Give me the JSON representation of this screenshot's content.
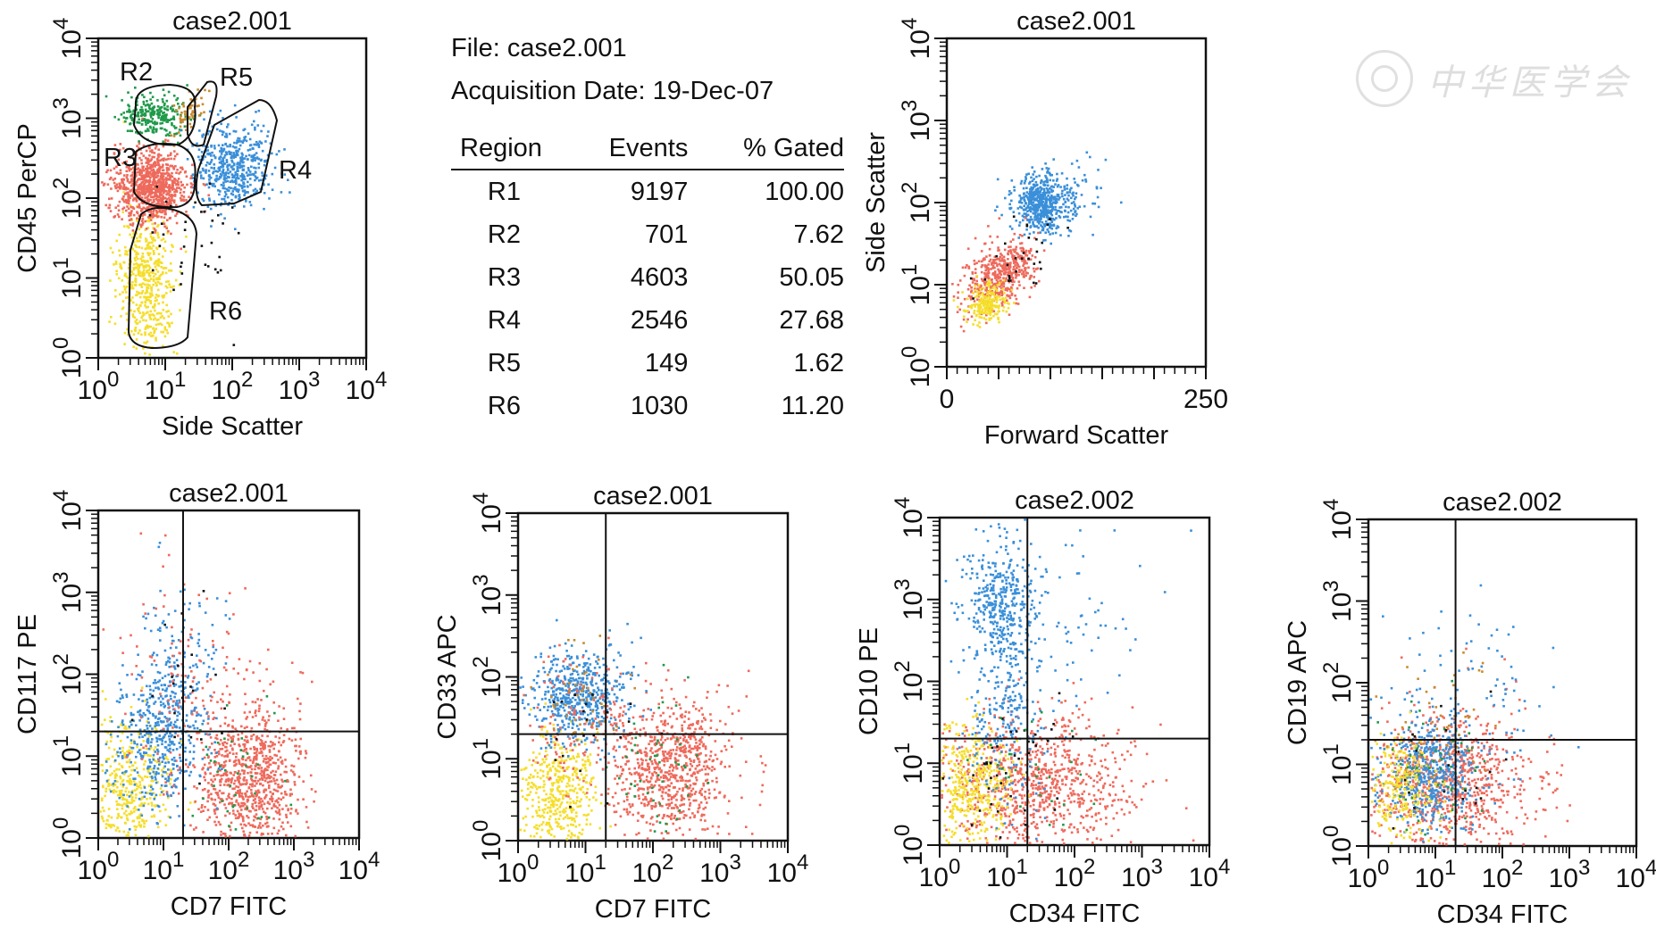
{
  "info": {
    "file_line": "File: case2.001",
    "date_line": "Acquisition Date: 19-Dec-07"
  },
  "stats": {
    "headers": [
      "Region",
      "Events",
      "% Gated"
    ],
    "rows": [
      [
        "R1",
        "9197",
        "100.00"
      ],
      [
        "R2",
        "701",
        "7.62"
      ],
      [
        "R3",
        "4603",
        "50.05"
      ],
      [
        "R4",
        "2546",
        "27.68"
      ],
      [
        "R5",
        "149",
        "1.62"
      ],
      [
        "R6",
        "1030",
        "11.20"
      ]
    ]
  },
  "watermark": {
    "text": "中华医学会"
  },
  "colors": {
    "blue": "#3a8fd9",
    "red": "#ee6a5c",
    "yellow": "#f5de2a",
    "green": "#1f9a4a",
    "orange": "#c98a2e",
    "black": "#111111"
  },
  "chart_data": [
    {
      "type": "scatter",
      "title": "case2.001",
      "xlabel": "Side Scatter",
      "ylabel": "CD45 PerCP",
      "xscale": "log",
      "yscale": "log",
      "xlim": [
        1,
        10000
      ],
      "ylim": [
        1,
        10000
      ],
      "regions": [
        {
          "name": "R2",
          "color": "#1f9a4a",
          "x_center": 6,
          "y_center": 1100,
          "n_events": 701
        },
        {
          "name": "R3",
          "color": "#ee6a5c",
          "x_center": 6,
          "y_center": 140,
          "n_events": 4603
        },
        {
          "name": "R4",
          "color": "#3a8fd9",
          "x_center": 100,
          "y_center": 250,
          "n_events": 2546
        },
        {
          "name": "R5",
          "color": "#c98a2e",
          "x_center": 20,
          "y_center": 1100,
          "n_events": 149
        },
        {
          "name": "R6",
          "color": "#f5de2a",
          "x_center": 5,
          "y_center": 10,
          "n_events": 1030
        }
      ]
    },
    {
      "type": "scatter",
      "title": "case2.001",
      "xlabel": "Forward Scatter",
      "ylabel": "Side Scatter",
      "xscale": "linear",
      "yscale": "log",
      "xlim": [
        0,
        250
      ],
      "ylim": [
        1,
        10000
      ],
      "x_ticks": [
        "0",
        "250"
      ],
      "populations": [
        {
          "name": "blue",
          "x_center": 90,
          "y_center": 100
        },
        {
          "name": "red",
          "x_center": 45,
          "y_center": 10
        },
        {
          "name": "yellow",
          "x_center": 35,
          "y_center": 6
        }
      ]
    },
    {
      "type": "scatter",
      "title": "case2.001",
      "xlabel": "CD7 FITC",
      "ylabel": "CD117 PE",
      "xscale": "log",
      "yscale": "log",
      "xlim": [
        1,
        10000
      ],
      "ylim": [
        1,
        10000
      ],
      "quadrant": {
        "x": 20,
        "y": 20
      }
    },
    {
      "type": "scatter",
      "title": "case2.001",
      "xlabel": "CD7 FITC",
      "ylabel": "CD33 APC",
      "xscale": "log",
      "yscale": "log",
      "xlim": [
        1,
        10000
      ],
      "ylim": [
        1,
        10000
      ],
      "quadrant": {
        "x": 20,
        "y": 20
      }
    },
    {
      "type": "scatter",
      "title": "case2.002",
      "xlabel": "CD34 FITC",
      "ylabel": "CD10 PE",
      "xscale": "log",
      "yscale": "log",
      "xlim": [
        1,
        10000
      ],
      "ylim": [
        1,
        10000
      ],
      "quadrant": {
        "x": 20,
        "y": 20
      }
    },
    {
      "type": "scatter",
      "title": "case2.002",
      "xlabel": "CD34 FITC",
      "ylabel": "CD19 APC",
      "xscale": "log",
      "yscale": "log",
      "xlim": [
        1,
        10000
      ],
      "ylim": [
        1,
        10000
      ],
      "quadrant": {
        "x": 20,
        "y": 20
      }
    }
  ]
}
